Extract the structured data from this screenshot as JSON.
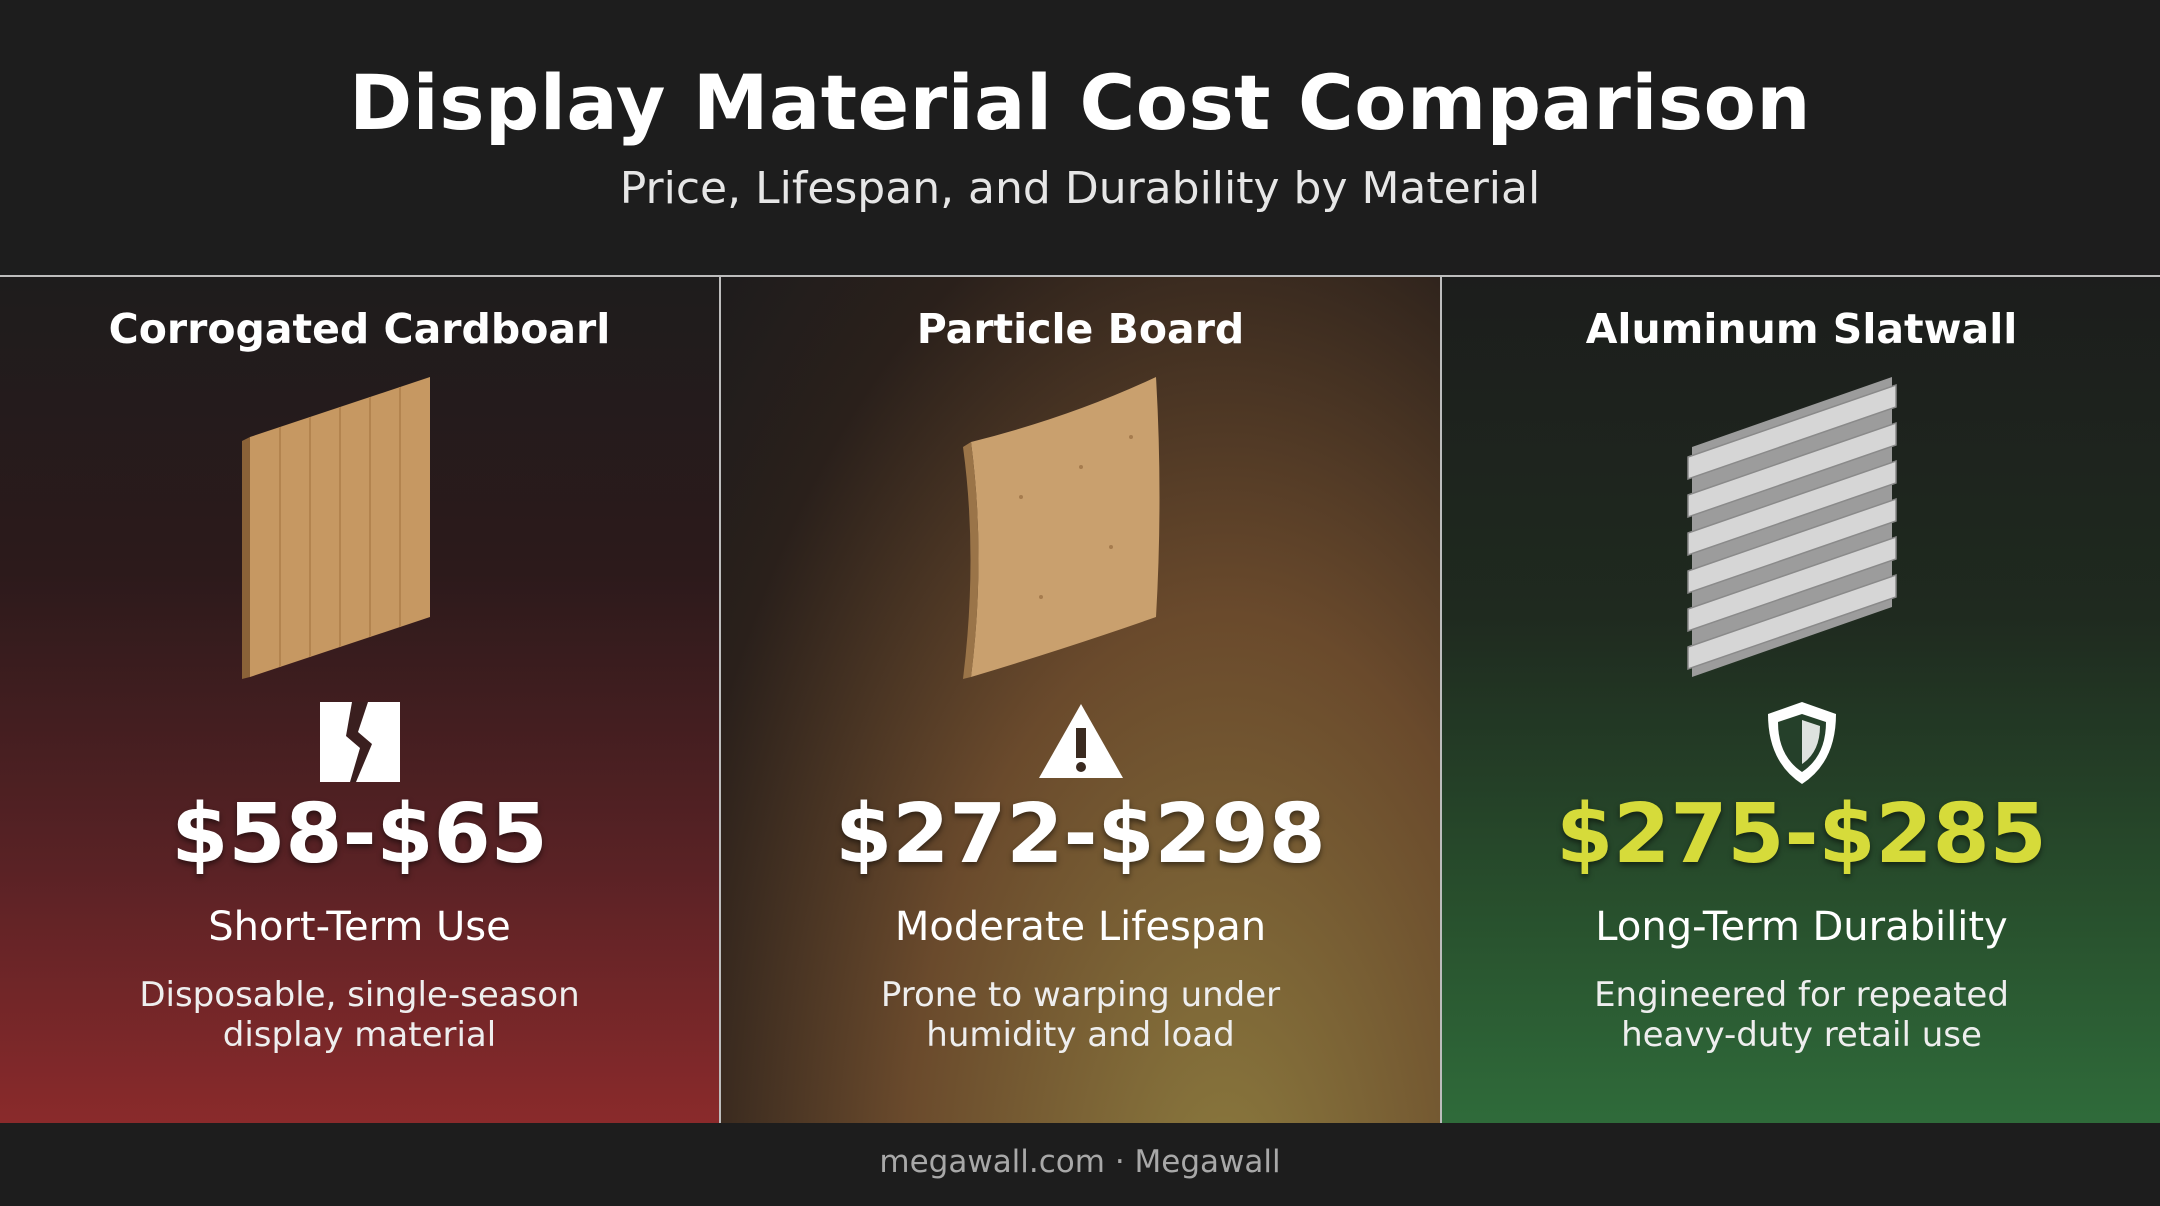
{
  "header": {
    "title": "Display Material Cost Comparison",
    "subtitle": "Price, Lifespan, and Durability by Material"
  },
  "panels": [
    {
      "name": "Corrogated Cardboarl",
      "price": "$58-$65",
      "label": "Short-Term Use",
      "description": [
        "Disposable, single-season",
        "display material"
      ]
    },
    {
      "name": "Particle Board",
      "price": "$272-$298",
      "label": "Moderate Lifespan",
      "description": [
        "Prone to warping under",
        "humidity and load"
      ]
    },
    {
      "name": "Aluminum Slatwall",
      "price": "$275-$285",
      "label": "Long-Term Durability",
      "description": [
        "Engineered for repeated",
        "heavy-duty retail use"
      ]
    }
  ],
  "footer": "megawall.com · Megawall"
}
